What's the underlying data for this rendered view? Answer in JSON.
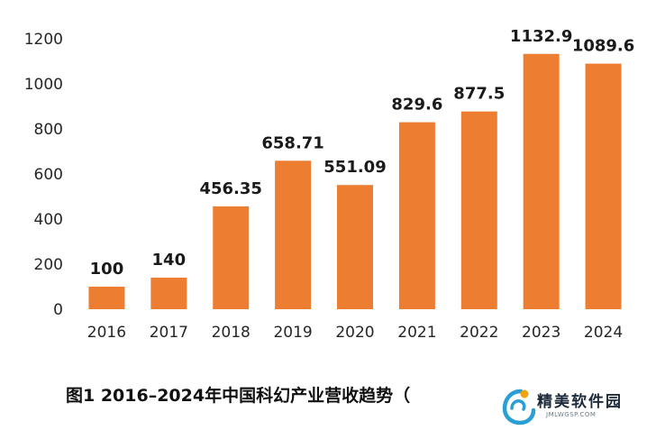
{
  "chart_data": {
    "type": "bar",
    "categories": [
      "2016",
      "2017",
      "2018",
      "2019",
      "2020",
      "2021",
      "2022",
      "2023",
      "2024"
    ],
    "values": [
      100,
      140,
      456.35,
      658.71,
      551.09,
      829.6,
      877.5,
      1132.9,
      1089.6
    ],
    "value_labels": [
      "100",
      "140",
      "456.35",
      "658.71",
      "551.09",
      "829.6",
      "877.5",
      "1132.9",
      "1089.6"
    ],
    "yticks": [
      "0",
      "200",
      "400",
      "600",
      "800",
      "1000",
      "1200"
    ],
    "ylim": [
      0,
      1200
    ],
    "grid": false,
    "bar_color": "#ED7D31",
    "caption": "图1  2016–2024年中国科幻产业营收趋势（"
  },
  "watermark": {
    "name": "精美软件园",
    "url": "JMLWGSP.COM",
    "logo_colors": [
      "#2a9fd6",
      "#f2a20c"
    ]
  }
}
